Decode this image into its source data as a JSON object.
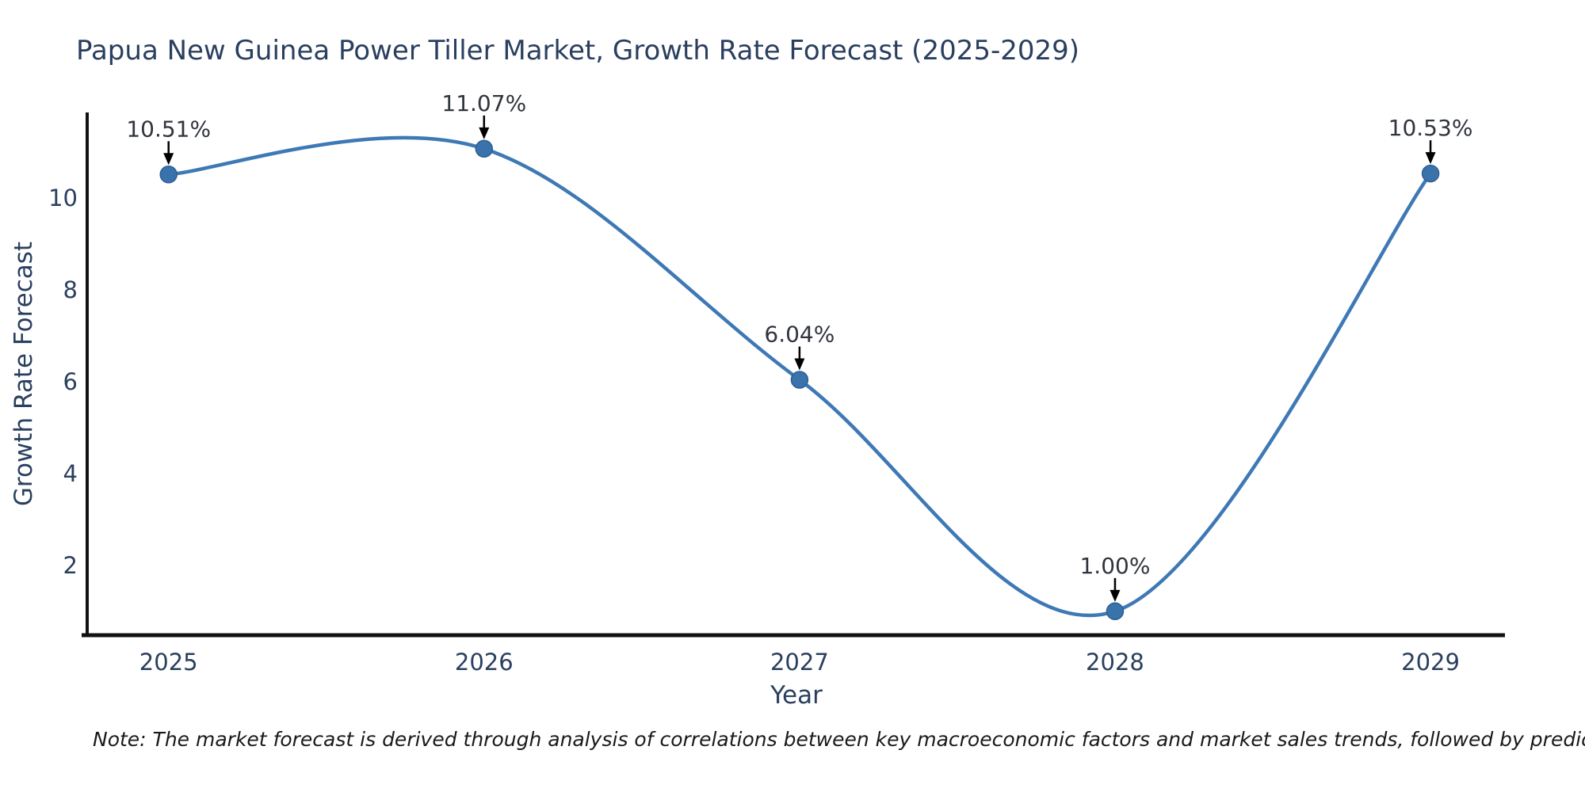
{
  "chart_data": {
    "type": "line",
    "title": "Papua New Guinea Power Tiller Market, Growth Rate Forecast (2025-2029)",
    "xlabel": "Year",
    "ylabel": "Growth Rate Forecast",
    "x": [
      2025,
      2026,
      2027,
      2028,
      2029
    ],
    "values": [
      10.51,
      11.07,
      6.04,
      1.0,
      10.53
    ],
    "point_labels": [
      "10.51%",
      "11.07%",
      "6.04%",
      "1.00%",
      "10.53%"
    ],
    "series_name": "Growth Rate Forecast",
    "line_shape": "spline",
    "grid": false,
    "legend": false,
    "y_ticks": [
      2,
      4,
      6,
      8,
      10
    ],
    "y_range": [
      0.48,
      11.86
    ],
    "x_range": [
      2024.742,
      2029.236
    ],
    "colors": {
      "line": "#3e79b5",
      "marker": "#3a72ab",
      "marker_edge": "#2d5f94",
      "title_text": "#2a3f5f",
      "axis_text": "#2a3f5f",
      "annotation_text": "#30343c",
      "arrow": "#000000",
      "axis_line": "#111111",
      "background": "#ffffff"
    }
  },
  "note": "Note: The market forecast is derived through analysis of correlations between key macroeconomic factors and market sales trends, followed by predictive modeling to project future sales"
}
